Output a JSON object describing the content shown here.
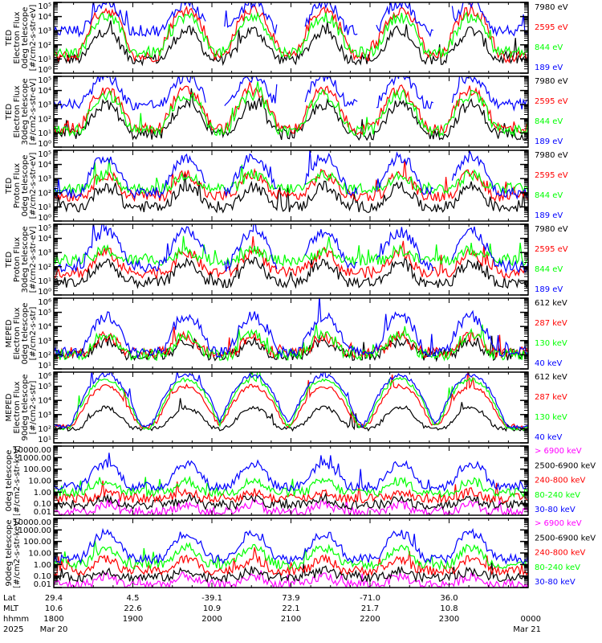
{
  "chart_data": [
    {
      "type": "line",
      "title_lines": [
        "TED",
        "Electron Flux",
        "0deg telescope",
        "[#/cm2-s-str-eV]"
      ],
      "yscale": "log",
      "ylim": [
        1,
        100000
      ],
      "ytick_labels": [
        "10⁰",
        "10¹",
        "10²",
        "10³",
        "10⁴",
        "10⁵"
      ],
      "series": [
        {
          "name": "7980 eV",
          "color": "#000000",
          "base": 10,
          "peak": 1000
        },
        {
          "name": "2595 eV",
          "color": "#ff0000",
          "base": 15,
          "peak": 30000
        },
        {
          "name": "844 eV",
          "color": "#00ff00",
          "base": 30,
          "peak": 10000
        },
        {
          "name": "189 eV",
          "color": "#0000ff",
          "base": 1000,
          "peak": 100000
        }
      ],
      "pattern": "ted_electron"
    },
    {
      "type": "line",
      "title_lines": [
        "TED",
        "Electron Flux",
        "30deg telescope",
        "[#/cm2-s-str-eV]"
      ],
      "yscale": "log",
      "ylim": [
        1,
        100000
      ],
      "ytick_labels": [
        "10⁰",
        "10¹",
        "10²",
        "10³",
        "10⁴",
        "10⁵"
      ],
      "series": [
        {
          "name": "7980 eV",
          "color": "#000000",
          "base": 8,
          "peak": 1000
        },
        {
          "name": "2595 eV",
          "color": "#ff0000",
          "base": 20,
          "peak": 10000
        },
        {
          "name": "844 eV",
          "color": "#00ff00",
          "base": 15,
          "peak": 5000
        },
        {
          "name": "189 eV",
          "color": "#0000ff",
          "base": 1000,
          "peak": 100000
        }
      ],
      "pattern": "ted_electron"
    },
    {
      "type": "line",
      "title_lines": [
        "TED",
        "Proton Flux",
        "0deg telescope",
        "[#/cm2-s-str-eV]"
      ],
      "yscale": "log",
      "ylim": [
        1,
        100000
      ],
      "ytick_labels": [
        "10⁰",
        "10¹",
        "10²",
        "10³",
        "10⁴",
        "10⁵"
      ],
      "series": [
        {
          "name": "7980 eV",
          "color": "#000000",
          "base": 10,
          "peak": 300
        },
        {
          "name": "2595 eV",
          "color": "#ff0000",
          "base": 60,
          "peak": 2000
        },
        {
          "name": "844 eV",
          "color": "#00ff00",
          "base": 200,
          "peak": 2000
        },
        {
          "name": "189 eV",
          "color": "#0000ff",
          "base": 100,
          "peak": 30000
        }
      ],
      "pattern": "ted_proton"
    },
    {
      "type": "line",
      "title_lines": [
        "TED",
        "Proton Flux",
        "30deg telescope",
        "[#/cm2-s-str-eV]"
      ],
      "yscale": "log",
      "ylim": [
        1,
        100000
      ],
      "ytick_labels": [
        "10⁰",
        "10¹",
        "10²",
        "10³",
        "10⁴",
        "10⁵"
      ],
      "series": [
        {
          "name": "7980 eV",
          "color": "#000000",
          "base": 8,
          "peak": 200
        },
        {
          "name": "2595 eV",
          "color": "#ff0000",
          "base": 40,
          "peak": 1000
        },
        {
          "name": "844 eV",
          "color": "#00ff00",
          "base": 300,
          "peak": 1500
        },
        {
          "name": "189 eV",
          "color": "#0000ff",
          "base": 100,
          "peak": 30000
        }
      ],
      "pattern": "ted_proton"
    },
    {
      "type": "line",
      "title_lines": [
        "MEPED",
        "Electron Flux",
        "0deg telescope",
        "[#/cm2-s-str]"
      ],
      "yscale": "log",
      "ylim": [
        10,
        1000000
      ],
      "ytick_labels": [
        "10¹",
        "10²",
        "10³",
        "10⁴",
        "10⁵",
        "10⁶"
      ],
      "series": [
        {
          "name": "612 keV",
          "color": "#000000",
          "base": 100,
          "peak": 1000
        },
        {
          "name": "287 keV",
          "color": "#ff0000",
          "base": 150,
          "peak": 2000
        },
        {
          "name": "130 keV",
          "color": "#00ff00",
          "base": 100,
          "peak": 3000
        },
        {
          "name": "40 keV",
          "color": "#0000ff",
          "base": 150,
          "peak": 50000
        }
      ],
      "pattern": "meped_e0"
    },
    {
      "type": "line",
      "title_lines": [
        "MEPED",
        "Electron Flux",
        "90deg telescope",
        "[#/cm2-s-str]"
      ],
      "yscale": "log",
      "ylim": [
        10,
        1000000
      ],
      "ytick_labels": [
        "10¹",
        "10²",
        "10³",
        "10⁴",
        "10⁵",
        "10⁶"
      ],
      "series": [
        {
          "name": "612 keV",
          "color": "#000000",
          "base": 100,
          "peak": 3000
        },
        {
          "name": "287 keV",
          "color": "#ff0000",
          "base": 150,
          "peak": 100000
        },
        {
          "name": "130 keV",
          "color": "#00ff00",
          "base": 100,
          "peak": 300000
        },
        {
          "name": "40 keV",
          "color": "#0000ff",
          "base": 150,
          "peak": 600000
        }
      ],
      "pattern": "meped_e90"
    },
    {
      "type": "line",
      "title_lines": [
        "0deg telescope",
        "[#/cm2-s-str-keV]"
      ],
      "yscale": "log",
      "ylim": [
        0.01,
        10000
      ],
      "ytick_labels": [
        "0.01",
        "0.10",
        "1.00",
        "10.00",
        "100.00",
        "1000.00",
        "10000.00"
      ],
      "series": [
        {
          "name": "> 6900 keV",
          "color": "#ff00ff",
          "base": 0.02,
          "peak": 0.1
        },
        {
          "name": "2500-6900 keV",
          "color": "#000000",
          "base": 0.08,
          "peak": 0.3
        },
        {
          "name": "240-800 keV",
          "color": "#ff0000",
          "base": 0.3,
          "peak": 1
        },
        {
          "name": "80-240 keV",
          "color": "#00ff00",
          "base": 1,
          "peak": 10
        },
        {
          "name": "30-80 keV",
          "color": "#0000ff",
          "base": 3,
          "peak": 300
        }
      ],
      "pattern": "meped_p0"
    },
    {
      "type": "line",
      "title_lines": [
        "90deg telescope",
        "[#/cm2-s-str-keV]"
      ],
      "yscale": "log",
      "ylim": [
        0.01,
        10000
      ],
      "ytick_labels": [
        "0.01",
        "0.10",
        "1.00",
        "10.00",
        "100.00",
        "1000.00",
        "10000.00"
      ],
      "series": [
        {
          "name": "> 6900 keV",
          "color": "#ff00ff",
          "base": 0.02,
          "peak": 0.1
        },
        {
          "name": "2500-6900 keV",
          "color": "#000000",
          "base": 0.08,
          "peak": 0.3
        },
        {
          "name": "240-800 keV",
          "color": "#ff0000",
          "base": 0.3,
          "peak": 3
        },
        {
          "name": "80-240 keV",
          "color": "#00ff00",
          "base": 1,
          "peak": 30
        },
        {
          "name": "30-80 keV",
          "color": "#0000ff",
          "base": 3,
          "peak": 500
        }
      ],
      "pattern": "meped_p90"
    }
  ],
  "x_axis": {
    "rows": [
      {
        "label": "Lat",
        "values": [
          "29.4",
          "4.5",
          "-39.1",
          "73.9",
          "-71.0",
          "36.0",
          ""
        ]
      },
      {
        "label": "MLT",
        "values": [
          "10.6",
          "22.6",
          "10.9",
          "22.1",
          "21.7",
          "10.8",
          ""
        ]
      },
      {
        "label": "hhmm",
        "values": [
          "1800",
          "1900",
          "2000",
          "2100",
          "2200",
          "2300",
          "0000"
        ]
      },
      {
        "label": "2025",
        "values": [
          "Mar 20",
          "",
          "",
          "",
          "",
          "",
          "Mar 21"
        ]
      }
    ],
    "time_range_hours": [
      18,
      24
    ]
  }
}
